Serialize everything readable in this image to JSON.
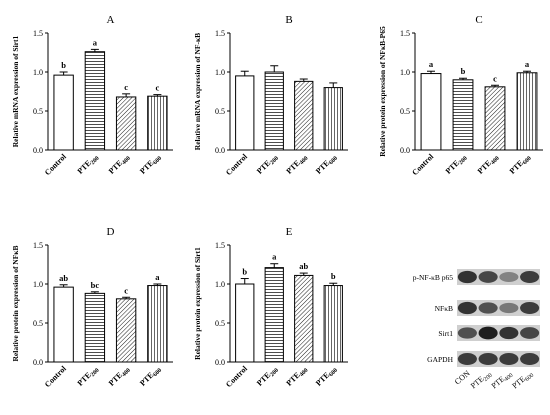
{
  "chart_data": [
    {
      "type": "bar",
      "panel_label": "A",
      "ylabel": "Relative mRNA expression of Sirt1",
      "ylim": [
        0,
        1.5
      ],
      "yticks": [
        "0.0",
        "0.5",
        "1.0",
        "1.5"
      ],
      "categories": [
        "Control",
        "PTE200",
        "PTE400",
        "PTE600"
      ],
      "category_labels": [
        {
          "main": "Control",
          "sub": ""
        },
        {
          "main": "PTE",
          "sub": "200"
        },
        {
          "main": "PTE",
          "sub": "400"
        },
        {
          "main": "PTE",
          "sub": "600"
        }
      ],
      "values": [
        0.96,
        1.26,
        0.68,
        0.69
      ],
      "errors": [
        0.04,
        0.03,
        0.04,
        0.02
      ],
      "significance": [
        "b",
        "a",
        "c",
        "c"
      ],
      "grid": false,
      "patterns": [
        "empty",
        "horizontal",
        "diagonal",
        "vertical"
      ]
    },
    {
      "type": "bar",
      "panel_label": "B",
      "ylabel": "Relative mRNA expression of NF-κB",
      "ylim": [
        0,
        1.5
      ],
      "yticks": [
        "0.0",
        "0.5",
        "1.0",
        "1.5"
      ],
      "categories": [
        "Control",
        "PTE200",
        "PTE400",
        "PTE600"
      ],
      "category_labels": [
        {
          "main": "Control",
          "sub": ""
        },
        {
          "main": "PTE",
          "sub": "200"
        },
        {
          "main": "PTE",
          "sub": "400"
        },
        {
          "main": "PTE",
          "sub": "600"
        }
      ],
      "values": [
        0.95,
        1.0,
        0.88,
        0.8
      ],
      "errors": [
        0.06,
        0.08,
        0.03,
        0.06
      ],
      "significance": [
        "",
        "",
        "",
        ""
      ],
      "grid": false,
      "patterns": [
        "empty",
        "horizontal",
        "diagonal",
        "vertical"
      ]
    },
    {
      "type": "bar",
      "panel_label": "C",
      "ylabel": "Relative protein expression of NFκB-P65",
      "ylim": [
        0,
        1.5
      ],
      "yticks": [
        "0.0",
        "0.5",
        "1.0",
        "1.5"
      ],
      "categories": [
        "Control",
        "PTE200",
        "PTE400",
        "PTE600"
      ],
      "category_labels": [
        {
          "main": "Control",
          "sub": ""
        },
        {
          "main": "PTE",
          "sub": "200"
        },
        {
          "main": "PTE",
          "sub": "400"
        },
        {
          "main": "PTE",
          "sub": "600"
        }
      ],
      "values": [
        0.98,
        0.9,
        0.81,
        0.99
      ],
      "errors": [
        0.03,
        0.02,
        0.02,
        0.02
      ],
      "significance": [
        "a",
        "b",
        "c",
        "a"
      ],
      "grid": false,
      "patterns": [
        "empty",
        "horizontal",
        "diagonal",
        "vertical"
      ]
    },
    {
      "type": "bar",
      "panel_label": "D",
      "ylabel": "Relative protein expression of NFκB",
      "ylim": [
        0,
        1.5
      ],
      "yticks": [
        "0.0",
        "0.5",
        "1.0",
        "1.5"
      ],
      "categories": [
        "Control",
        "PTE200",
        "PTE400",
        "PTE600"
      ],
      "category_labels": [
        {
          "main": "Control",
          "sub": ""
        },
        {
          "main": "PTE",
          "sub": "200"
        },
        {
          "main": "PTE",
          "sub": "400"
        },
        {
          "main": "PTE",
          "sub": "600"
        }
      ],
      "values": [
        0.96,
        0.88,
        0.81,
        0.98
      ],
      "errors": [
        0.03,
        0.02,
        0.02,
        0.02
      ],
      "significance": [
        "ab",
        "bc",
        "c",
        "a"
      ],
      "grid": false,
      "patterns": [
        "empty",
        "horizontal",
        "diagonal",
        "vertical"
      ]
    },
    {
      "type": "bar",
      "panel_label": "E",
      "ylabel": "Relative protein expression of Sirt1",
      "ylim": [
        0,
        1.5
      ],
      "yticks": [
        "0.0",
        "0.5",
        "1.0",
        "1.5"
      ],
      "categories": [
        "Control",
        "PTE200",
        "PTE400",
        "PTE600"
      ],
      "category_labels": [
        {
          "main": "Control",
          "sub": ""
        },
        {
          "main": "PTE",
          "sub": "200"
        },
        {
          "main": "PTE",
          "sub": "400"
        },
        {
          "main": "PTE",
          "sub": "600"
        }
      ],
      "values": [
        1.0,
        1.21,
        1.11,
        0.98
      ],
      "errors": [
        0.07,
        0.05,
        0.03,
        0.03
      ],
      "significance": [
        "b",
        "a",
        "ab",
        "b"
      ],
      "grid": false,
      "patterns": [
        "empty",
        "horizontal",
        "diagonal",
        "vertical"
      ]
    }
  ],
  "western_blot": {
    "rows": [
      "p-NF-κB p65",
      "NFκB",
      "Sirt1",
      "GAPDH"
    ],
    "lanes": [
      {
        "main": "CON",
        "sub": ""
      },
      {
        "main": "PTE",
        "sub": "200"
      },
      {
        "main": "PTE",
        "sub": "400"
      },
      {
        "main": "PTE",
        "sub": "600"
      }
    ],
    "band_intensity": [
      [
        0.9,
        0.8,
        0.5,
        0.85
      ],
      [
        0.9,
        0.75,
        0.55,
        0.85
      ],
      [
        0.75,
        1.0,
        0.9,
        0.8
      ],
      [
        0.85,
        0.85,
        0.85,
        0.85
      ]
    ]
  }
}
